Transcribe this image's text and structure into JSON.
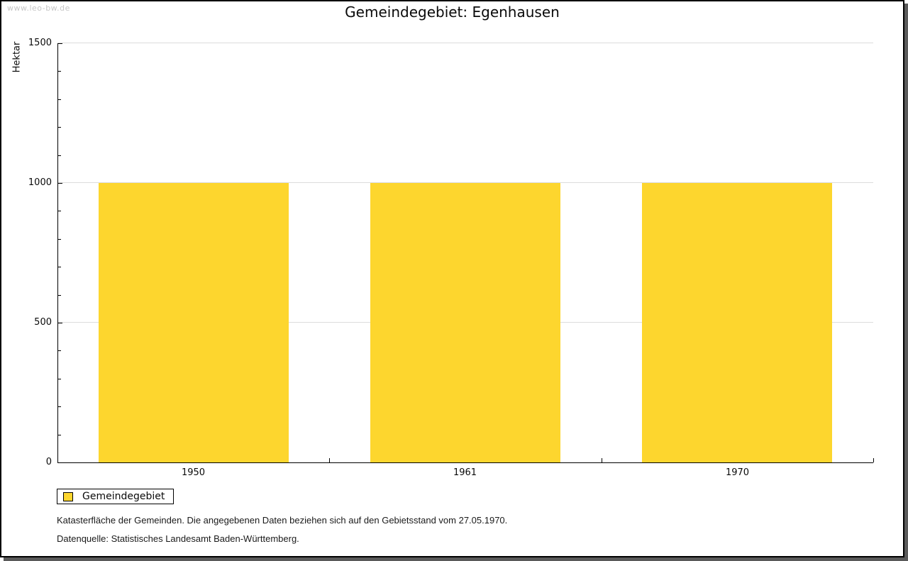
{
  "watermark": "www.leo-bw.de",
  "chart_data": {
    "type": "bar",
    "title": "Gemeindegebiet: Egenhausen",
    "categories": [
      "1950",
      "1961",
      "1970"
    ],
    "series": [
      {
        "name": "Gemeindegebiet",
        "values": [
          1000,
          1000,
          1000
        ]
      }
    ],
    "xlabel": "",
    "ylabel": "Hektar",
    "ylim": [
      0,
      1500
    ],
    "yticks": [
      0,
      500,
      1000,
      1500
    ],
    "minor_tick_step": 100,
    "grid": true,
    "bar_color": "#FDD62E",
    "legend_position": "bottom-left"
  },
  "legend": {
    "label": "Gemeindegebiet",
    "swatch_color": "#FDD62E"
  },
  "footer": {
    "line1": "Katasterfläche der Gemeinden. Die angegebenen Daten beziehen sich auf den Gebietsstand vom 27.05.1970.",
    "line2": "Datenquelle: Statistisches Landesamt Baden-Württemberg."
  }
}
